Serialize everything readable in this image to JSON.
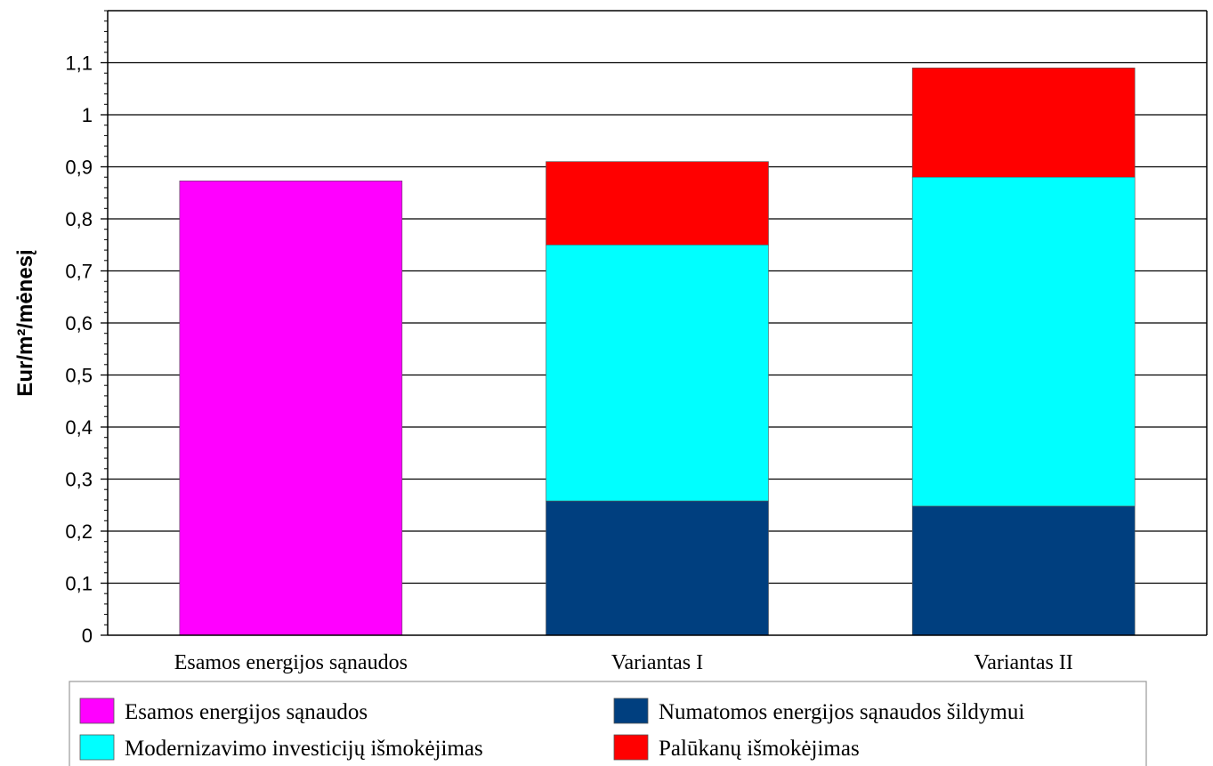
{
  "chart_data": {
    "type": "bar",
    "stacked": true,
    "categories": [
      "Esamos energijos sąnaudos",
      "Variantas I",
      "Variantas II"
    ],
    "ylabel": "Eur/m²/mėnesį",
    "xlabel": "",
    "ylim": [
      0,
      1.2
    ],
    "yticks": [
      "0",
      "0,1",
      "0,2",
      "0,3",
      "0,4",
      "0,5",
      "0,6",
      "0,7",
      "0,8",
      "0,9",
      "1",
      "1,1"
    ],
    "ytick_values": [
      0,
      0.1,
      0.2,
      0.3,
      0.4,
      0.5,
      0.6,
      0.7,
      0.8,
      0.9,
      1.0,
      1.1
    ],
    "grid": true,
    "legend_position": "bottom",
    "series": [
      {
        "name": "Esamos energijos sąnaudos",
        "color": "#ff00ff",
        "values": [
          0.873,
          0,
          0
        ]
      },
      {
        "name": "Numatomos energijos sąnaudos šildymui",
        "color": "#003f7f",
        "values": [
          0,
          0.258,
          0.248
        ]
      },
      {
        "name": "Modernizavimo investicijų išmokėjimas",
        "color": "#00ffff",
        "values": [
          0,
          0.492,
          0.632
        ]
      },
      {
        "name": "Palūkanų išmokėjimas",
        "color": "#ff0000",
        "values": [
          0,
          0.16,
          0.21
        ]
      }
    ],
    "legend_order": [
      0,
      1,
      2,
      3
    ]
  }
}
